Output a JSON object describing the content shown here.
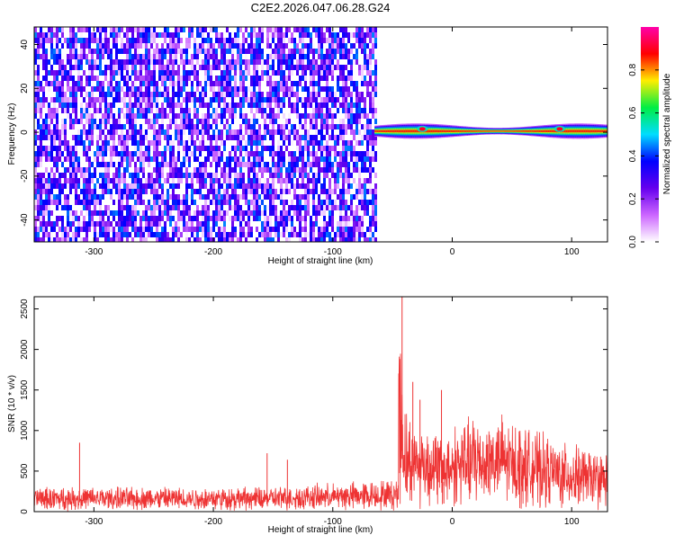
{
  "page": {
    "title": "C2E2.2026.047.06.28.G24"
  },
  "chart_data": [
    {
      "type": "heatmap",
      "xlabel": "Height of straight line (km)",
      "ylabel": "Frequency (Hz)",
      "xlim": [
        -350,
        130
      ],
      "ylim": [
        -50,
        48
      ],
      "xticks": [
        -300,
        -200,
        -100,
        0,
        100
      ],
      "yticks": [
        -40,
        -20,
        0,
        20,
        40
      ],
      "grid": false,
      "noise_region": {
        "x_range": [
          -350,
          -65
        ],
        "y_range": [
          -50,
          48
        ],
        "amplitude_range": [
          0.0,
          0.45
        ]
      },
      "signal_region": {
        "x_range": [
          -65,
          130
        ],
        "y_center": 0.5,
        "halfwidth_hz": [
          1.5,
          3.5
        ],
        "peak_amplitude": 0.95
      },
      "signal_features": [
        {
          "x": -25,
          "y": 1.5,
          "amplitude": 0.9
        },
        {
          "x": 90,
          "y": 1.5,
          "amplitude": 0.9
        }
      ],
      "colorbar": {
        "label": "Normalized spectral amplitude",
        "range": [
          0.0,
          1.0
        ],
        "ticks": [
          "0.0",
          "0.2",
          "0.4",
          "0.6",
          "0.8"
        ],
        "tick_values": [
          0.0,
          0.2,
          0.4,
          0.6,
          0.8
        ],
        "colors": [
          "#ffffff",
          "#cc66ff",
          "#6600ee",
          "#0000ff",
          "#00ddff",
          "#00ee44",
          "#ffee00",
          "#ff0000",
          "#ff00aa"
        ]
      }
    },
    {
      "type": "line",
      "xlabel": "Height of straight line (km)",
      "ylabel": "SNR (10 * v/v)",
      "xlim": [
        -350,
        130
      ],
      "ylim": [
        0,
        2650
      ],
      "xticks": [
        -300,
        -200,
        -100,
        0,
        100
      ],
      "yticks": [
        0,
        500,
        1000,
        1500,
        2000,
        2500
      ],
      "grid": false,
      "series": [
        {
          "color": "#ee3333",
          "segments": [
            {
              "x": [
                -350,
                -150,
                -80,
                -45
              ],
              "y": [
                230,
                230,
                280,
                300
              ]
            },
            {
              "x": [
                -45,
                -42,
                -38,
                -30,
                -20,
                -10
              ],
              "y": [
                2600,
                1300,
                900,
                850,
                800,
                750
              ]
            },
            {
              "x": [
                -10,
                0,
                20,
                40,
                60,
                90,
                130
              ],
              "y": [
                700,
                800,
                900,
                900,
                800,
                650,
                550
              ]
            }
          ],
          "spikes": [
            {
              "x": -42,
              "y": 2650
            },
            {
              "x": -33,
              "y": 1600
            },
            {
              "x": -27,
              "y": 1380
            },
            {
              "x": -9,
              "y": 1500
            },
            {
              "x": -7,
              "y": 100
            },
            {
              "x": -312,
              "y": 850
            },
            {
              "x": -155,
              "y": 720
            },
            {
              "x": -138,
              "y": 640
            }
          ]
        }
      ]
    }
  ]
}
